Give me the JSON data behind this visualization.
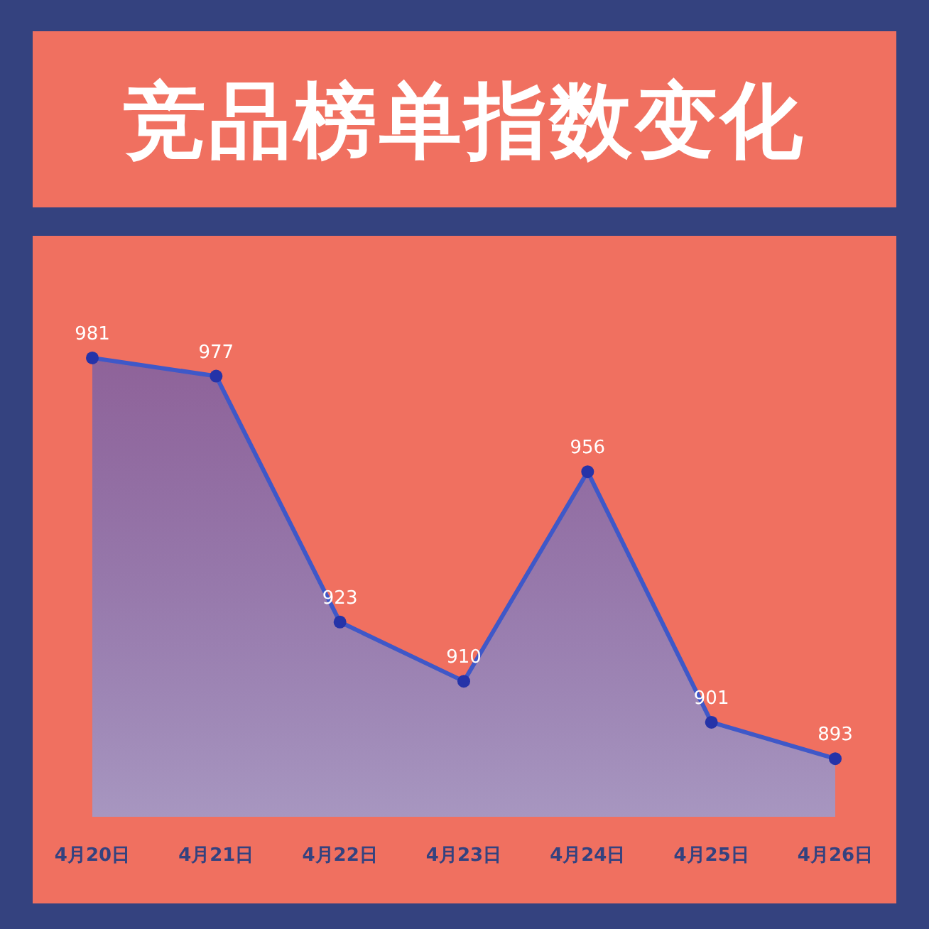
{
  "chart_data": {
    "type": "area",
    "title": "竞品榜单指数变化",
    "categories": [
      "4月20日",
      "4月21日",
      "4月22日",
      "4月23日",
      "4月24日",
      "4月25日",
      "4月26日"
    ],
    "series": [
      {
        "color": "#3f58c8",
        "values": [
          981,
          977,
          923,
          910,
          956,
          901,
          893
        ]
      }
    ],
    "tick_labels": "x",
    "data_labels": true,
    "marker": "circle"
  }
}
